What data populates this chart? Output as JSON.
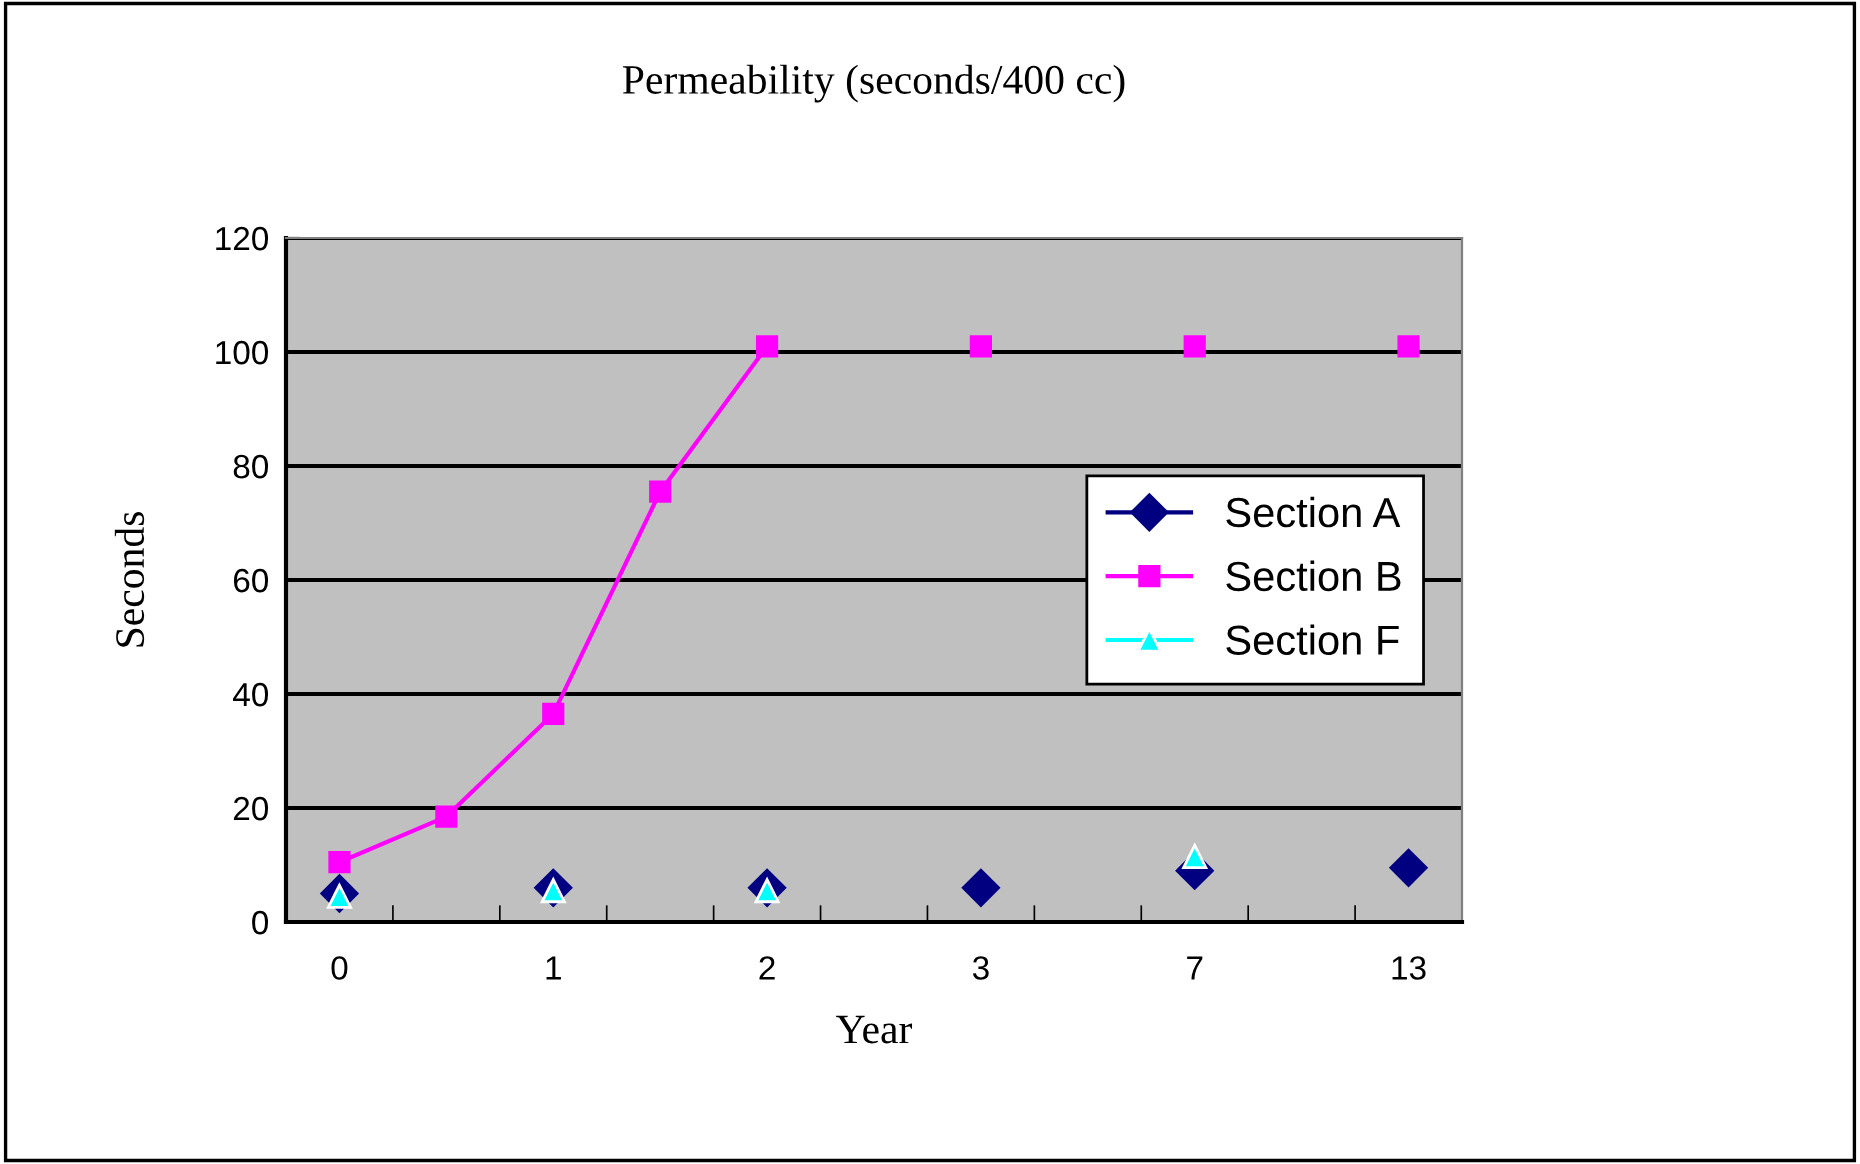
{
  "chart_data": {
    "type": "line",
    "title": "Permeability (seconds/400 cc)",
    "xlabel": "Year",
    "ylabel": "Seconds",
    "categories": [
      "0",
      null,
      "1",
      null,
      "2",
      null,
      "3",
      null,
      "7",
      null,
      "13"
    ],
    "series": [
      {
        "name": "Section A",
        "color": "#000080",
        "marker": "diamond",
        "values": [
          5,
          null,
          6,
          null,
          6,
          null,
          6,
          null,
          9,
          null,
          9.5
        ]
      },
      {
        "name": "Section B",
        "color": "#ff00ff",
        "marker": "square",
        "values": [
          10.5,
          18.5,
          36.5,
          75.5,
          101,
          null,
          101,
          null,
          101,
          null,
          101
        ]
      },
      {
        "name": "Section F",
        "color": "#00ffff",
        "marker": "triangle",
        "values": [
          4.5,
          null,
          5.5,
          null,
          5.5,
          null,
          null,
          null,
          11.5,
          null,
          null
        ]
      }
    ],
    "ylim": [
      0,
      120
    ],
    "yticks": [
      0,
      20,
      40,
      60,
      80,
      100,
      120
    ],
    "grid": "y",
    "legend": "center right",
    "line_style": "solid"
  }
}
